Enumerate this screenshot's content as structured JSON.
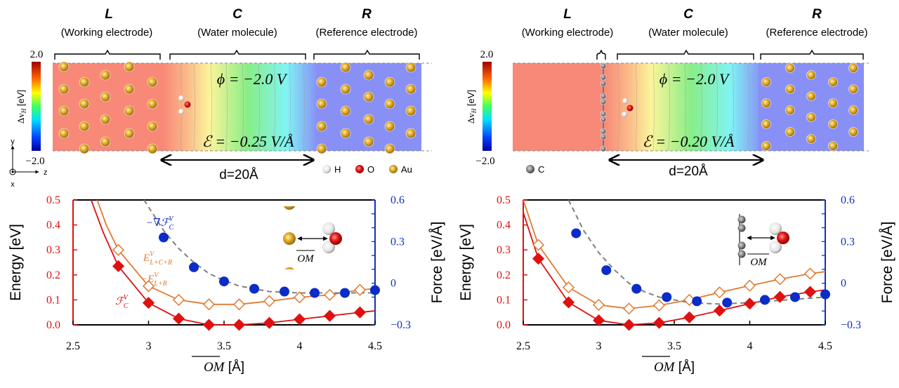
{
  "panels": [
    {
      "L": {
        "letter": "L",
        "label": "(Working electrode)"
      },
      "C": {
        "letter": "C",
        "label": "(Water molecule)"
      },
      "R": {
        "letter": "R",
        "label": "(Reference electrode)"
      },
      "phi": "ϕ = −2.0 V",
      "field": "ℰ = −0.25 V/Å",
      "distance": "d=20Å",
      "colorbar": {
        "max": "2.0",
        "min": "−2.0",
        "label_main": "Δv",
        "label_sub": "H",
        "label_unit": " [eV]"
      },
      "legend": [
        {
          "symbol": "H",
          "color": "#e8e8e8"
        },
        {
          "symbol": "O",
          "color": "#d91a1a"
        },
        {
          "symbol": "Au",
          "color": "#d4a020"
        }
      ],
      "axes": {
        "y": "y",
        "z": "z",
        "x": "x"
      }
    },
    {
      "L": {
        "letter": "L",
        "label": "(Working electrode)"
      },
      "C": {
        "letter": "C",
        "label": "(Water molecule)"
      },
      "R": {
        "letter": "R",
        "label": "(Reference electrode)"
      },
      "phi": "ϕ = −2.0 V",
      "field": "ℰ = −0.20 V/Å",
      "distance": "d=20Å",
      "colorbar": {
        "max": "2.0",
        "min": "−2.0",
        "label_main": "Δv",
        "label_sub": "H",
        "label_unit": " [eV]"
      },
      "legend": [
        {
          "symbol": "C",
          "color": "#8a8a8a"
        }
      ]
    }
  ],
  "colors": {
    "energy_axis": "#e01010",
    "force_axis": "#1030c0",
    "F_series": "#e01010",
    "E_series": "#e07a30",
    "force_points": "#0a2cc8",
    "fit": "#808080"
  },
  "chart_data": [
    {
      "type": "line+scatter",
      "xlabel_main": "OM",
      "xlabel_unit": " [Å]",
      "ylabel_left": "Energy [eV]",
      "ylabel_right": "Force [eV/Å]",
      "xlim": [
        2.5,
        4.5
      ],
      "ylim_left": [
        0.0,
        0.5
      ],
      "ylim_right": [
        -0.3,
        0.6
      ],
      "xticks": [
        "2.5",
        "3",
        "3.5",
        "4",
        "4.5"
      ],
      "yticks_left": [
        "0.0",
        "0.1",
        "0.2",
        "0.3",
        "0.4",
        "0.5"
      ],
      "yticks_right": [
        "−0.3",
        "0",
        "0.3",
        "0.6"
      ],
      "inset_label": "OM",
      "annotations": {
        "force": "−∇ℱ",
        "F": "ℱ",
        "sup": "V",
        "sub_C": "C",
        "E1": "E",
        "E1_sub": "L+C+R",
        "E2": "−E",
        "E2_sub": "L+R"
      },
      "series": [
        {
          "key": "F",
          "axis": "left",
          "marker": "filled-diamond",
          "x": [
            2.8,
            3.0,
            3.2,
            3.4,
            3.6,
            3.8,
            4.0,
            4.2,
            4.4
          ],
          "y": [
            0.235,
            0.088,
            0.025,
            0.0,
            0.0,
            0.008,
            0.022,
            0.036,
            0.05
          ],
          "line_x": [
            2.62,
            2.7,
            2.8,
            3.0,
            3.2,
            3.4,
            3.6,
            3.8,
            4.0,
            4.2,
            4.4,
            4.5
          ],
          "line_y": [
            0.5,
            0.37,
            0.235,
            0.088,
            0.025,
            0.0,
            0.0,
            0.008,
            0.022,
            0.036,
            0.05,
            0.056
          ]
        },
        {
          "key": "E",
          "axis": "left",
          "marker": "open-diamond",
          "x": [
            2.8,
            3.0,
            3.2,
            3.4,
            3.6,
            3.8,
            4.0,
            4.2,
            4.4
          ],
          "y": [
            0.3,
            0.155,
            0.1,
            0.082,
            0.082,
            0.095,
            0.11,
            0.12,
            0.14
          ],
          "line_x": [
            2.66,
            2.72,
            2.8,
            3.0,
            3.2,
            3.4,
            3.6,
            3.8,
            4.0,
            4.2,
            4.4,
            4.5
          ],
          "line_y": [
            0.5,
            0.4,
            0.3,
            0.155,
            0.1,
            0.082,
            0.082,
            0.095,
            0.11,
            0.12,
            0.14,
            0.145
          ]
        },
        {
          "key": "force",
          "axis": "right",
          "marker": "filled-circle",
          "x": [
            3.1,
            3.3,
            3.5,
            3.7,
            3.9,
            4.1,
            4.3,
            4.5
          ],
          "y": [
            0.33,
            0.115,
            0.013,
            -0.04,
            -0.06,
            -0.07,
            -0.07,
            -0.05
          ]
        },
        {
          "key": "fit",
          "axis": "right",
          "marker": "dashed-line",
          "line_x": [
            2.97,
            3.1,
            3.2,
            3.3,
            3.4,
            3.5,
            3.6,
            3.8,
            4.0,
            4.5
          ],
          "line_y": [
            0.6,
            0.38,
            0.25,
            0.15,
            0.07,
            0.02,
            -0.02,
            -0.06,
            -0.07,
            -0.07
          ]
        }
      ]
    },
    {
      "type": "line+scatter",
      "xlabel_main": "OM",
      "xlabel_unit": " [Å]",
      "ylabel_left": "Energy [eV]",
      "ylabel_right": "Force [eV/Å]",
      "xlim": [
        2.5,
        4.5
      ],
      "ylim_left": [
        0.0,
        0.5
      ],
      "ylim_right": [
        -0.3,
        0.6
      ],
      "xticks": [
        "2.5",
        "3",
        "3.5",
        "4",
        "4.5"
      ],
      "yticks_left": [
        "0.0",
        "0.1",
        "0.2",
        "0.3",
        "0.4",
        "0.5"
      ],
      "yticks_right": [
        "−0.3",
        "0",
        "0.3",
        "0.6"
      ],
      "inset_label": "OM",
      "series": [
        {
          "key": "F",
          "axis": "left",
          "marker": "filled-diamond",
          "x": [
            2.6,
            2.8,
            3.0,
            3.2,
            3.4,
            3.6,
            3.8,
            4.0,
            4.2,
            4.4
          ],
          "y": [
            0.265,
            0.09,
            0.018,
            0.0,
            0.008,
            0.03,
            0.057,
            0.085,
            0.112,
            0.132
          ],
          "line_x": [
            2.5,
            2.6,
            2.8,
            3.0,
            3.2,
            3.4,
            3.6,
            3.8,
            4.0,
            4.2,
            4.4,
            4.5
          ],
          "line_y": [
            0.45,
            0.265,
            0.09,
            0.018,
            0.0,
            0.008,
            0.03,
            0.057,
            0.085,
            0.112,
            0.132,
            0.14
          ]
        },
        {
          "key": "E",
          "axis": "left",
          "marker": "open-diamond",
          "x": [
            2.6,
            2.8,
            3.0,
            3.2,
            3.4,
            3.6,
            3.8,
            4.0,
            4.2,
            4.4
          ],
          "y": [
            0.32,
            0.15,
            0.08,
            0.065,
            0.078,
            0.1,
            0.13,
            0.157,
            0.183,
            0.205
          ],
          "line_x": [
            2.5,
            2.6,
            2.8,
            3.0,
            3.2,
            3.4,
            3.6,
            3.8,
            4.0,
            4.2,
            4.4,
            4.5
          ],
          "line_y": [
            0.5,
            0.32,
            0.15,
            0.08,
            0.065,
            0.078,
            0.1,
            0.13,
            0.157,
            0.183,
            0.205,
            0.213
          ]
        },
        {
          "key": "force",
          "axis": "right",
          "marker": "filled-circle",
          "x": [
            2.85,
            3.05,
            3.25,
            3.45,
            3.65,
            3.85,
            4.1,
            4.3,
            4.5
          ],
          "y": [
            0.36,
            0.094,
            -0.04,
            -0.1,
            -0.13,
            -0.14,
            -0.12,
            -0.1,
            -0.08
          ]
        },
        {
          "key": "fit",
          "axis": "right",
          "marker": "dashed-line",
          "line_x": [
            2.8,
            2.9,
            3.0,
            3.1,
            3.2,
            3.3,
            3.4,
            3.6,
            3.8,
            4.0,
            4.5
          ],
          "line_y": [
            0.6,
            0.38,
            0.22,
            0.1,
            0.0,
            -0.06,
            -0.1,
            -0.14,
            -0.15,
            -0.14,
            -0.1
          ]
        }
      ]
    }
  ]
}
